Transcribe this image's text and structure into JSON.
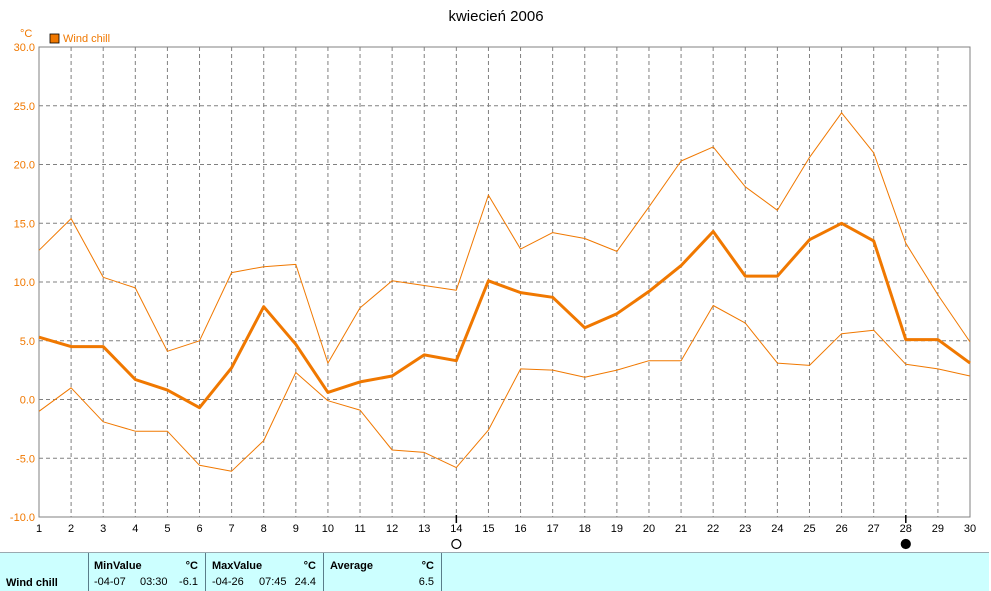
{
  "chart_data": {
    "type": "line",
    "title": "kwiecień 2006",
    "unit": "°C",
    "x": [
      1,
      2,
      3,
      4,
      5,
      6,
      7,
      8,
      9,
      10,
      11,
      12,
      13,
      14,
      15,
      16,
      17,
      18,
      19,
      20,
      21,
      22,
      23,
      24,
      25,
      26,
      27,
      28,
      29,
      30
    ],
    "ylim": [
      -10,
      30
    ],
    "yticks": [
      "30.0",
      "25.0",
      "20.0",
      "15.0",
      "10.0",
      "5.0",
      "0.0",
      "-5.0",
      "-10.0"
    ],
    "grid": true,
    "legend_position": "top-left",
    "series": [
      {
        "name": "Wind chill",
        "role": "average",
        "values": [
          5.3,
          4.5,
          4.5,
          1.7,
          0.8,
          -0.7,
          2.7,
          7.9,
          4.7,
          0.6,
          1.5,
          2.0,
          3.8,
          3.3,
          10.1,
          9.1,
          8.7,
          6.1,
          7.3,
          9.2,
          11.4,
          14.3,
          10.5,
          10.5,
          13.6,
          15.0,
          13.5,
          5.1,
          5.1,
          3.1
        ]
      },
      {
        "role": "max",
        "values": [
          12.7,
          15.4,
          10.4,
          9.5,
          4.1,
          5.0,
          10.8,
          11.3,
          11.5,
          3.1,
          7.8,
          10.1,
          9.7,
          9.3,
          17.4,
          12.8,
          14.2,
          13.7,
          12.6,
          16.4,
          20.3,
          21.5,
          18.1,
          16.1,
          20.6,
          24.4,
          21.0,
          13.3,
          8.9,
          4.9
        ]
      },
      {
        "role": "min",
        "values": [
          -1.0,
          1.0,
          -1.9,
          -2.7,
          -2.7,
          -5.6,
          -6.1,
          -3.5,
          2.3,
          -0.1,
          -0.9,
          -4.3,
          -4.5,
          -5.8,
          -2.6,
          2.6,
          2.5,
          1.9,
          2.5,
          3.3,
          3.3,
          8.0,
          6.5,
          3.1,
          2.9,
          5.6,
          5.9,
          3.0,
          2.6,
          2.0
        ]
      }
    ],
    "colors": {
      "line": "#f07800",
      "grid": "#808080",
      "ytick": "#f07800"
    },
    "markers": [
      {
        "day": 14,
        "icon": "new-moon-icon"
      },
      {
        "day": 28,
        "icon": "full-moon-icon"
      }
    ]
  },
  "stats": {
    "series_label": "Wind chill",
    "min": {
      "header": "MinValue",
      "unit": "°C",
      "date": "-04-07",
      "time": "03:30",
      "value": "-6.1"
    },
    "max": {
      "header": "MaxValue",
      "unit": "°C",
      "date": "-04-26",
      "time": "07:45",
      "value": "24.4"
    },
    "avg": {
      "header": "Average",
      "unit": "°C",
      "value": "6.5"
    },
    "background": "#ccffff"
  }
}
